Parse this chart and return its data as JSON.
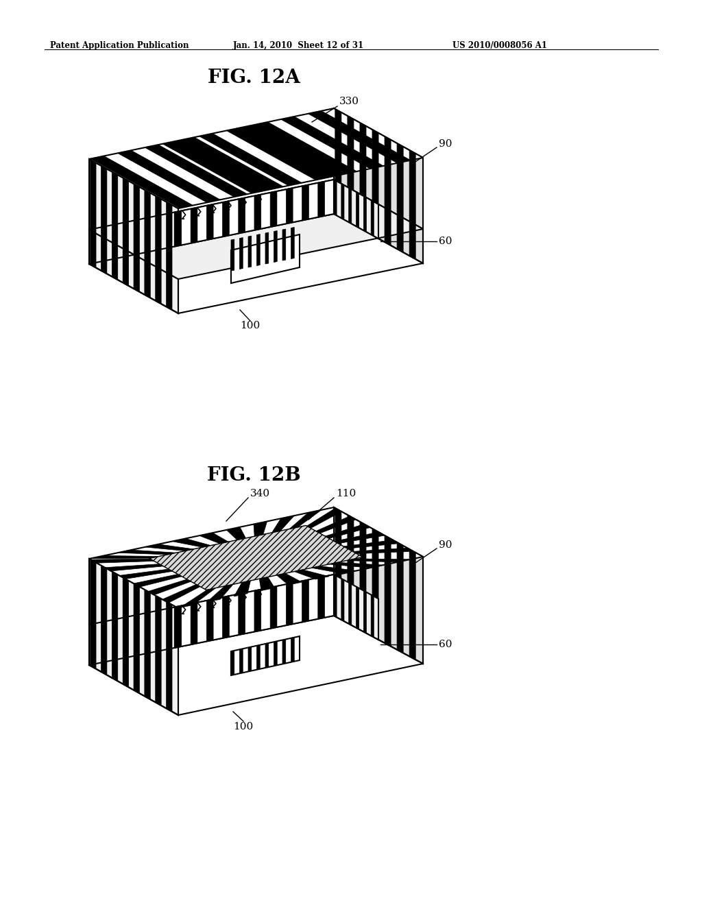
{
  "background_color": "#ffffff",
  "header_left": "Patent Application Publication",
  "header_center": "Jan. 14, 2010  Sheet 12 of 31",
  "header_right": "US 2010/0008056 A1",
  "fig_label_A": "FIG. 12A",
  "fig_label_B": "FIG. 12B",
  "label_330": "330",
  "label_90A": "90",
  "label_60A": "60",
  "label_100A": "100",
  "label_340": "340",
  "label_110": "110",
  "label_90B": "90",
  "label_60B": "60",
  "label_100B": "100",
  "line_color": "#000000",
  "face_white": "#ffffff",
  "face_light": "#f0f0f0",
  "face_mid": "#e0e0e0",
  "face_dark": "#c8c8c8",
  "face_gray": "#b8b8b8",
  "hatch_gray": "#d0d0d0"
}
